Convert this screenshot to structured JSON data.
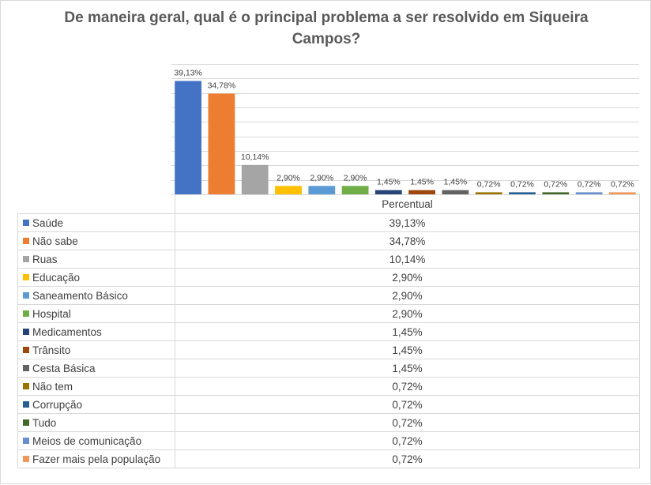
{
  "chart_data": {
    "type": "bar",
    "title": "De maneira geral, qual é o principal problema a ser resolvido em Siqueira Campos?",
    "title_lines": [
      "De maneira geral, qual é o principal problema a ser resolvido  em Siqueira",
      "Campos?"
    ],
    "series": [
      {
        "name": "Percentual",
        "values": [
          39.13,
          34.78,
          10.14,
          2.9,
          2.9,
          2.9,
          1.45,
          1.45,
          1.45,
          0.72,
          0.72,
          0.72,
          0.72,
          0.72
        ]
      }
    ],
    "categories": [
      "Saúde",
      "Não sabe",
      "Ruas",
      "Educação",
      "Saneamento Básico",
      "Hospital",
      "Medicamentos",
      "Trânsito",
      "Cesta Básica",
      "Não tem",
      "Corrupção",
      "Tudo",
      "Meios de comunicação",
      "Fazer mais pela população"
    ],
    "labels": [
      "39,13%",
      "34,78%",
      "10,14%",
      "2,90%",
      "2,90%",
      "2,90%",
      "1,45%",
      "1,45%",
      "1,45%",
      "0,72%",
      "0,72%",
      "0,72%",
      "0,72%",
      "0,72%"
    ],
    "colors": [
      "#4472c4",
      "#ed7d31",
      "#a5a5a5",
      "#ffc000",
      "#5b9bd5",
      "#70ad47",
      "#264478",
      "#9e480e",
      "#636363",
      "#997300",
      "#255e91",
      "#43682b",
      "#698ed0",
      "#f1975a"
    ],
    "ylim": [
      0,
      45
    ],
    "grid": true,
    "data_table": true
  }
}
